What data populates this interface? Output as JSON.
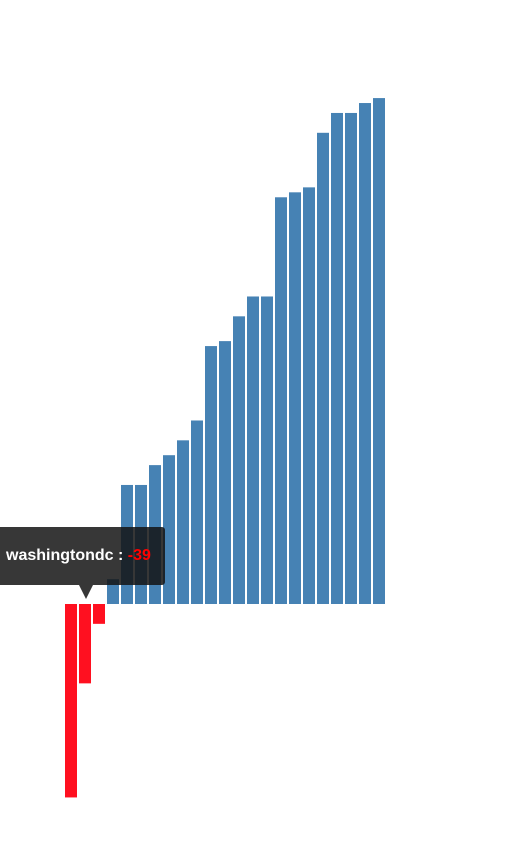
{
  "chart_data": {
    "type": "bar",
    "values": [
      -39,
      -16,
      -4,
      5,
      24,
      24,
      28,
      30,
      33,
      37,
      52,
      53,
      58,
      62,
      62,
      82,
      83,
      84,
      95,
      99,
      99,
      101,
      102
    ],
    "colors": {
      "positive": "#4682b4",
      "negative": "#ff1020"
    },
    "ylim": [
      -40,
      104
    ]
  },
  "tooltip": {
    "label": "washingtondc : ",
    "value": "-39"
  }
}
